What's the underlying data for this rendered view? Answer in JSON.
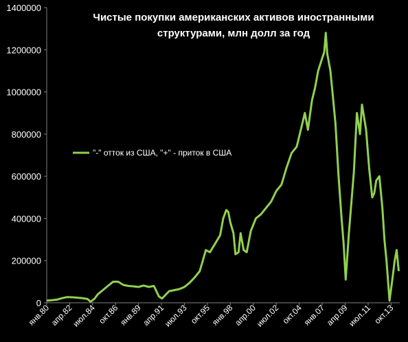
{
  "chart_data": {
    "type": "line",
    "title_lines": [
      "Чистые покупки американских активов иностранными",
      "структурами, млн долл за год"
    ],
    "xlabel": "",
    "ylabel": "",
    "ylim": [
      0,
      1400000
    ],
    "y_ticks": [
      "0",
      "200000",
      "400000",
      "600000",
      "800000",
      "1000000",
      "1200000",
      "1400000"
    ],
    "x_tick_labels": [
      "янв.80",
      "апр.82",
      "июл.84",
      "окт.86",
      "янв.89",
      "апр.91",
      "июл.93",
      "окт.95",
      "янв.98",
      "апр.00",
      "июл.02",
      "окт.04",
      "янв.07",
      "апр.09",
      "июл.11",
      "окт.13"
    ],
    "legend_position": "center-right",
    "grid": false,
    "series": [
      {
        "name": "\"-\" отток из США, \"+\" - приток в США",
        "color": "#92d050",
        "points": [
          [
            1980.0,
            10000
          ],
          [
            1980.5,
            12000
          ],
          [
            1981.0,
            15000
          ],
          [
            1981.5,
            22000
          ],
          [
            1982.0,
            27000
          ],
          [
            1982.5,
            26000
          ],
          [
            1983.0,
            24000
          ],
          [
            1983.5,
            22000
          ],
          [
            1984.0,
            18000
          ],
          [
            1984.3,
            5000
          ],
          [
            1984.7,
            20000
          ],
          [
            1985.0,
            40000
          ],
          [
            1985.5,
            60000
          ],
          [
            1986.0,
            80000
          ],
          [
            1986.5,
            100000
          ],
          [
            1987.0,
            100000
          ],
          [
            1987.5,
            85000
          ],
          [
            1988.0,
            80000
          ],
          [
            1988.5,
            78000
          ],
          [
            1989.0,
            75000
          ],
          [
            1989.5,
            82000
          ],
          [
            1990.0,
            75000
          ],
          [
            1990.5,
            80000
          ],
          [
            1990.8,
            50000
          ],
          [
            1991.0,
            30000
          ],
          [
            1991.3,
            20000
          ],
          [
            1991.7,
            40000
          ],
          [
            1992.0,
            55000
          ],
          [
            1992.5,
            60000
          ],
          [
            1993.0,
            65000
          ],
          [
            1993.5,
            75000
          ],
          [
            1994.0,
            95000
          ],
          [
            1994.5,
            120000
          ],
          [
            1995.0,
            150000
          ],
          [
            1995.3,
            200000
          ],
          [
            1995.6,
            250000
          ],
          [
            1996.0,
            240000
          ],
          [
            1996.5,
            280000
          ],
          [
            1997.0,
            320000
          ],
          [
            1997.3,
            400000
          ],
          [
            1997.6,
            440000
          ],
          [
            1997.8,
            430000
          ],
          [
            1998.0,
            380000
          ],
          [
            1998.3,
            330000
          ],
          [
            1998.5,
            230000
          ],
          [
            1998.8,
            240000
          ],
          [
            1999.0,
            330000
          ],
          [
            1999.3,
            250000
          ],
          [
            1999.6,
            240000
          ],
          [
            2000.0,
            340000
          ],
          [
            2000.5,
            400000
          ],
          [
            2001.0,
            420000
          ],
          [
            2001.5,
            450000
          ],
          [
            2002.0,
            480000
          ],
          [
            2002.5,
            530000
          ],
          [
            2003.0,
            560000
          ],
          [
            2003.5,
            640000
          ],
          [
            2004.0,
            710000
          ],
          [
            2004.5,
            740000
          ],
          [
            2005.0,
            840000
          ],
          [
            2005.3,
            900000
          ],
          [
            2005.6,
            820000
          ],
          [
            2006.0,
            960000
          ],
          [
            2006.3,
            1020000
          ],
          [
            2006.6,
            1100000
          ],
          [
            2007.0,
            1160000
          ],
          [
            2007.2,
            1190000
          ],
          [
            2007.35,
            1280000
          ],
          [
            2007.5,
            1180000
          ],
          [
            2007.8,
            1100000
          ],
          [
            2008.0,
            1000000
          ],
          [
            2008.3,
            850000
          ],
          [
            2008.6,
            600000
          ],
          [
            2008.9,
            400000
          ],
          [
            2009.1,
            280000
          ],
          [
            2009.3,
            110000
          ],
          [
            2009.6,
            320000
          ],
          [
            2009.9,
            500000
          ],
          [
            2010.1,
            620000
          ],
          [
            2010.4,
            900000
          ],
          [
            2010.7,
            800000
          ],
          [
            2010.9,
            940000
          ],
          [
            2011.1,
            880000
          ],
          [
            2011.3,
            820000
          ],
          [
            2011.6,
            640000
          ],
          [
            2011.9,
            500000
          ],
          [
            2012.1,
            520000
          ],
          [
            2012.3,
            580000
          ],
          [
            2012.6,
            600000
          ],
          [
            2012.9,
            450000
          ],
          [
            2013.1,
            300000
          ],
          [
            2013.3,
            200000
          ],
          [
            2013.6,
            10000
          ],
          [
            2013.9,
            120000
          ],
          [
            2014.1,
            200000
          ],
          [
            2014.3,
            250000
          ],
          [
            2014.5,
            150000
          ]
        ]
      }
    ]
  }
}
